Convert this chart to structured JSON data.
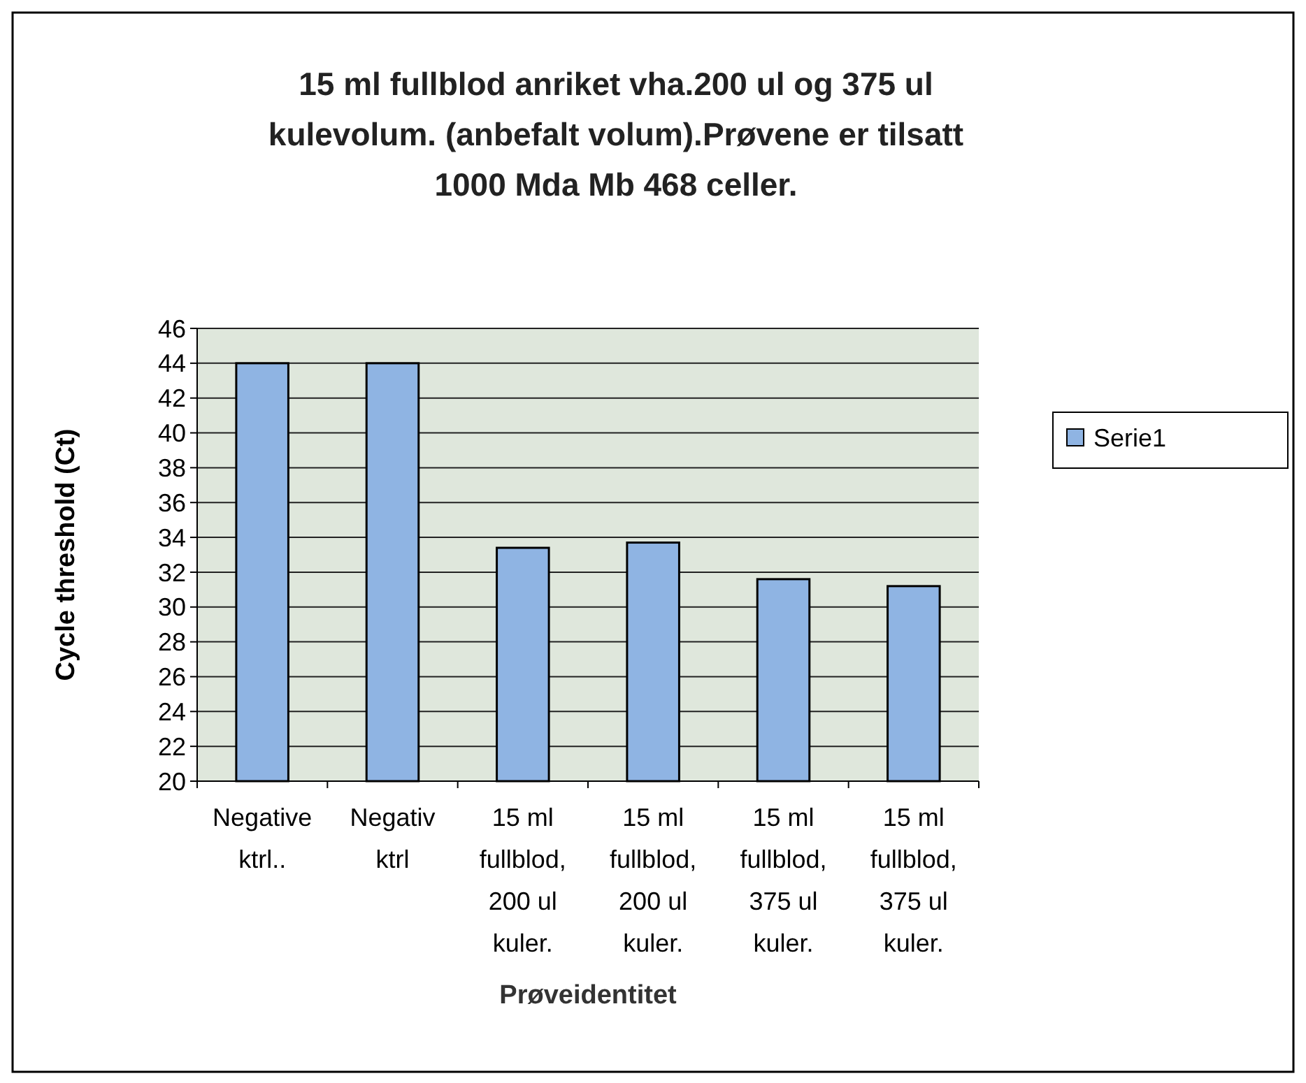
{
  "chart_data": {
    "type": "bar",
    "title": "15 ml fullblod anriket vha.200 ul og 375 ul kulevolum. (anbefalt volum).Prøvene er tilsatt 1000 Mda Mb 468 celler.",
    "xlabel": "Prøveidentitet",
    "ylabel": "Cycle threshold (Ct)",
    "categories": [
      "Negative ktrl..",
      "Negativ ktrl",
      "15 ml fullblod, 200 ul kuler.",
      "15 ml fullblod, 200 ul kuler.",
      "15 ml fullblod, 375 ul kuler.",
      "15 ml fullblod, 375 ul kuler."
    ],
    "series": [
      {
        "name": "Serie1",
        "color": "#8fb4e3",
        "values": [
          44,
          44,
          33.4,
          33.7,
          31.6,
          31.2
        ]
      }
    ],
    "ylim": [
      20,
      46
    ],
    "yticks": [
      20,
      22,
      24,
      26,
      28,
      30,
      32,
      34,
      36,
      38,
      40,
      42,
      44,
      46
    ],
    "grid": "y",
    "legend": "right"
  }
}
